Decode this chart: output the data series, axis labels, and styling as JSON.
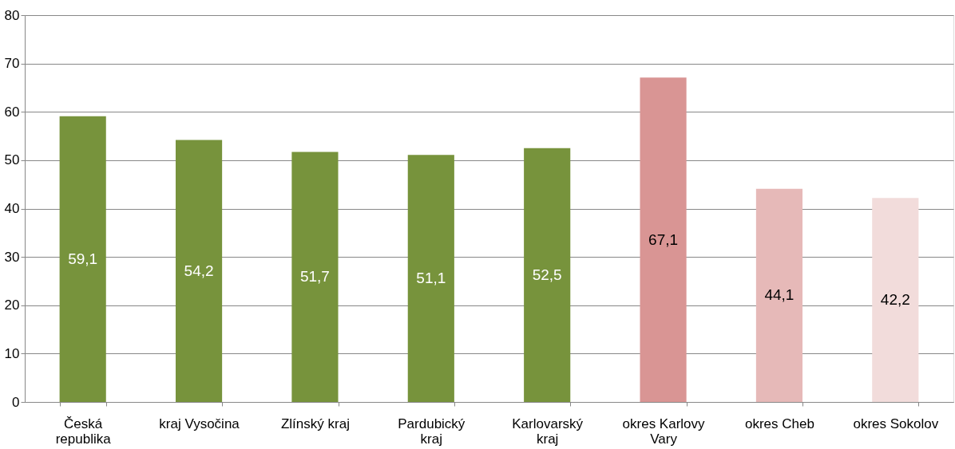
{
  "chart_data": {
    "type": "bar",
    "categories": [
      "Česká republika",
      "kraj Vysočina",
      "Zlínský kraj",
      "Pardubický kraj",
      "Karlovarský kraj",
      "okres Karlovy Vary",
      "okres Cheb",
      "okres Sokolov"
    ],
    "values": [
      59.1,
      54.2,
      51.7,
      51.1,
      52.5,
      67.1,
      44.1,
      42.2
    ],
    "colors": [
      "#77933c",
      "#77933c",
      "#77933c",
      "#77933c",
      "#77933c",
      "#d99594",
      "#e6b9b8",
      "#f2dcdb"
    ],
    "ylim": [
      0,
      80
    ],
    "yticks": [
      0,
      10,
      20,
      30,
      40,
      50,
      60,
      70,
      80
    ],
    "value_labels": [
      "59,1",
      "54,2",
      "51,7",
      "51,1",
      "52,5",
      "67,1",
      "44,1",
      "42,2"
    ],
    "grid": "y"
  }
}
